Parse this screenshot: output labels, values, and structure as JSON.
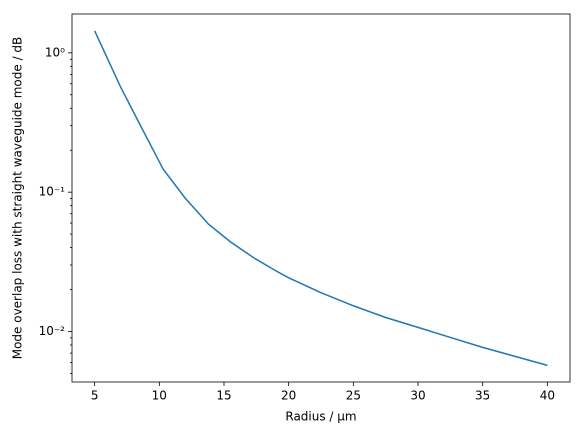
{
  "chart_data": {
    "type": "line",
    "xlabel": "Radius / µm",
    "ylabel": "Mode overlap loss with straight waveguide mode / dB",
    "x": [
      5,
      7,
      8.5,
      10.3,
      12,
      13.8,
      15.5,
      17.3,
      19,
      20,
      22.5,
      25,
      27.5,
      30,
      32.5,
      35,
      37.5,
      40
    ],
    "series": [
      {
        "color": "#1f77b4",
        "values": [
          1.44,
          0.57,
          0.306,
          0.146,
          0.0906,
          0.059,
          0.044,
          0.0338,
          0.0273,
          0.0243,
          0.019,
          0.0153,
          0.0126,
          0.0107,
          0.00906,
          0.00769,
          0.00663,
          0.00571
        ]
      }
    ],
    "xlim": [
      3.25,
      41.75
    ],
    "xticks": [
      5,
      10,
      15,
      20,
      25,
      30,
      35,
      40
    ],
    "ylim": [
      0.00434,
      1.9
    ],
    "ylog": true,
    "yticks": [
      {
        "value": 0.01,
        "label": "10⁻²"
      },
      {
        "value": 0.1,
        "label": "10⁻¹"
      },
      {
        "value": 1,
        "label": "10⁰"
      }
    ],
    "yminorticks": [
      0.005,
      0.006,
      0.007,
      0.008,
      0.009,
      0.02,
      0.03,
      0.04,
      0.05,
      0.06,
      0.07,
      0.08,
      0.09,
      0.2,
      0.3,
      0.4,
      0.5,
      0.6,
      0.7,
      0.8,
      0.9
    ]
  }
}
